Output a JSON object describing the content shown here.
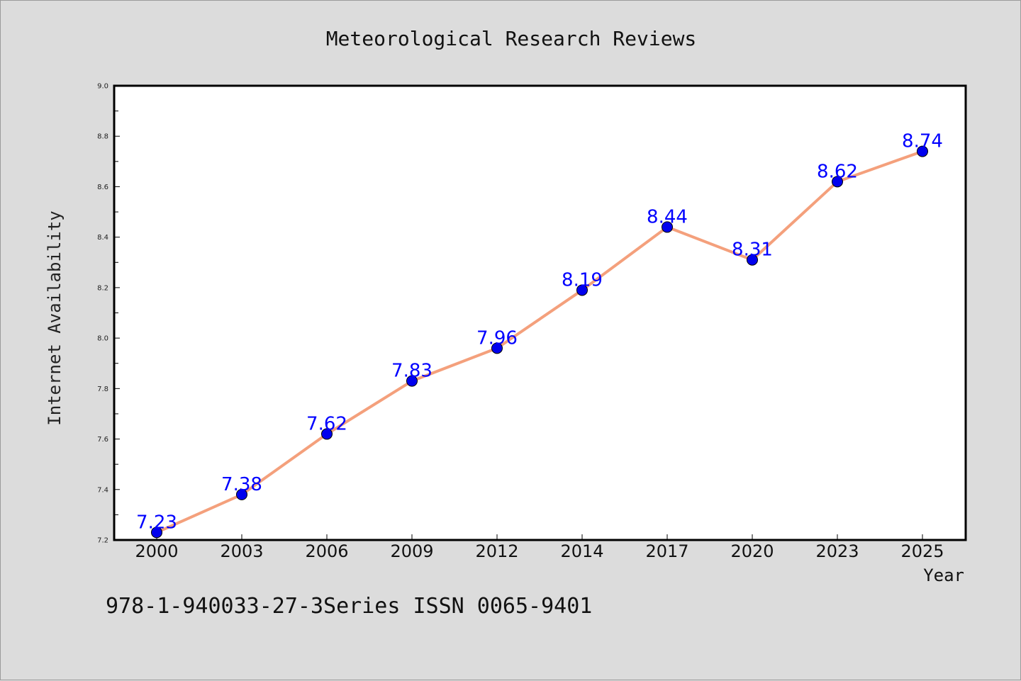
{
  "chart_data": {
    "type": "line",
    "title": "Meteorological Research Reviews",
    "xlabel": "Year",
    "ylabel": "Internet Availability",
    "categories": [
      "2000",
      "2003",
      "2006",
      "2009",
      "2012",
      "2014",
      "2017",
      "2020",
      "2023",
      "2025"
    ],
    "series": [
      {
        "values": [
          7.23,
          7.38,
          7.62,
          7.83,
          7.96,
          8.19,
          8.44,
          8.31,
          8.62,
          8.74
        ]
      }
    ],
    "data_labels": [
      "7.23",
      "7.38",
      "7.62",
      "7.83",
      "7.96",
      "8.19",
      "8.44",
      "8.31",
      "8.62",
      "8.74"
    ],
    "ylim": [
      7.2,
      9.0
    ],
    "yticks": [
      "7.2",
      "7.4",
      "7.6",
      "7.8",
      "8.0",
      "8.2",
      "8.4",
      "8.6",
      "8.8",
      "9.0"
    ],
    "grid": false,
    "line_color": "#f4a07c",
    "marker_color": "#0000ee",
    "label_color": "#0000ff"
  },
  "footer": {
    "text": "978-1-940033-27-3Series ISSN 0065-9401"
  },
  "colors": {
    "background": "#dcdcdc",
    "plot_background": "#ffffff"
  }
}
